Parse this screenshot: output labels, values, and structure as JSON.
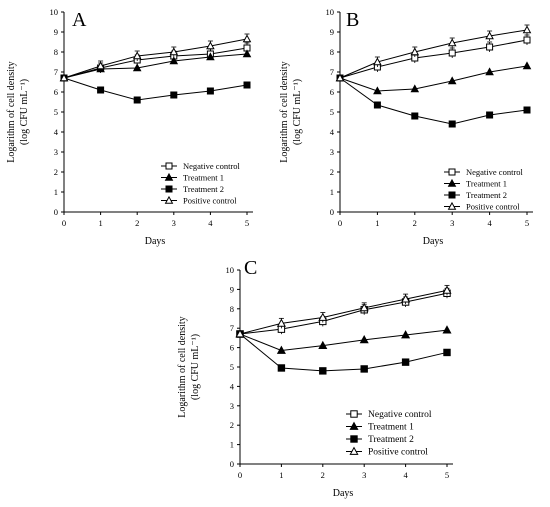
{
  "chart_data": [
    {
      "type": "line",
      "panel_label": "A",
      "xlabel": "Days",
      "ylabel_line1": "Logarithm of cell density",
      "ylabel_line2": "(log CFU mL⁻¹)",
      "x": [
        0,
        1,
        2,
        3,
        4,
        5
      ],
      "xlim": [
        0,
        5
      ],
      "ylim": [
        0,
        10
      ],
      "yticks": [
        0,
        1,
        2,
        3,
        4,
        5,
        6,
        7,
        8,
        9,
        10
      ],
      "legend_position": "bottom-right",
      "series": [
        {
          "name": "Negative control",
          "marker": "open-square",
          "values": [
            6.7,
            7.2,
            7.6,
            7.8,
            7.9,
            8.2
          ]
        },
        {
          "name": "Treatment 1",
          "marker": "filled-triangle",
          "values": [
            6.7,
            7.15,
            7.2,
            7.55,
            7.75,
            7.9
          ]
        },
        {
          "name": "Treatment 2",
          "marker": "filled-square",
          "values": [
            6.7,
            6.1,
            5.6,
            5.85,
            6.05,
            6.35
          ]
        },
        {
          "name": "Positive control",
          "marker": "open-triangle",
          "values": [
            6.7,
            7.3,
            7.8,
            8.0,
            8.3,
            8.65
          ]
        }
      ]
    },
    {
      "type": "line",
      "panel_label": "B",
      "xlabel": "Days",
      "ylabel_line1": "Logarithm of cell density",
      "ylabel_line2": "(log CFU mL⁻¹)",
      "x": [
        0,
        1,
        2,
        3,
        4,
        5
      ],
      "xlim": [
        0,
        5
      ],
      "ylim": [
        0,
        10
      ],
      "yticks": [
        0,
        1,
        2,
        3,
        4,
        5,
        6,
        7,
        8,
        9,
        10
      ],
      "legend_position": "bottom-right",
      "series": [
        {
          "name": "Negative control",
          "marker": "open-square",
          "values": [
            6.7,
            7.25,
            7.7,
            7.95,
            8.25,
            8.6
          ]
        },
        {
          "name": "Treatment 1",
          "marker": "filled-triangle",
          "values": [
            6.7,
            6.05,
            6.15,
            6.55,
            7.0,
            7.3
          ]
        },
        {
          "name": "Treatment 2",
          "marker": "filled-square",
          "values": [
            6.7,
            5.35,
            4.8,
            4.4,
            4.85,
            5.1
          ]
        },
        {
          "name": "Positive control",
          "marker": "open-triangle",
          "values": [
            6.7,
            7.5,
            8.0,
            8.45,
            8.8,
            9.1
          ]
        }
      ]
    },
    {
      "type": "line",
      "panel_label": "C",
      "xlabel": "Days",
      "ylabel_line1": "Logarithm of cell density",
      "ylabel_line2": "(log CFU mL⁻¹)",
      "x": [
        0,
        1,
        2,
        3,
        4,
        5
      ],
      "xlim": [
        0,
        5
      ],
      "ylim": [
        0,
        10
      ],
      "yticks": [
        0,
        1,
        2,
        3,
        4,
        5,
        6,
        7,
        8,
        9,
        10
      ],
      "legend_position": "bottom-right",
      "series": [
        {
          "name": "Negative control",
          "marker": "open-square",
          "values": [
            6.7,
            6.95,
            7.35,
            7.95,
            8.35,
            8.8
          ]
        },
        {
          "name": "Treatment 1",
          "marker": "filled-triangle",
          "values": [
            6.7,
            5.85,
            6.1,
            6.4,
            6.65,
            6.9
          ]
        },
        {
          "name": "Treatment 2",
          "marker": "filled-square",
          "values": [
            6.7,
            4.95,
            4.8,
            4.9,
            5.25,
            5.75
          ]
        },
        {
          "name": "Positive control",
          "marker": "open-triangle",
          "values": [
            6.7,
            7.25,
            7.55,
            8.05,
            8.5,
            8.95
          ]
        }
      ]
    }
  ]
}
